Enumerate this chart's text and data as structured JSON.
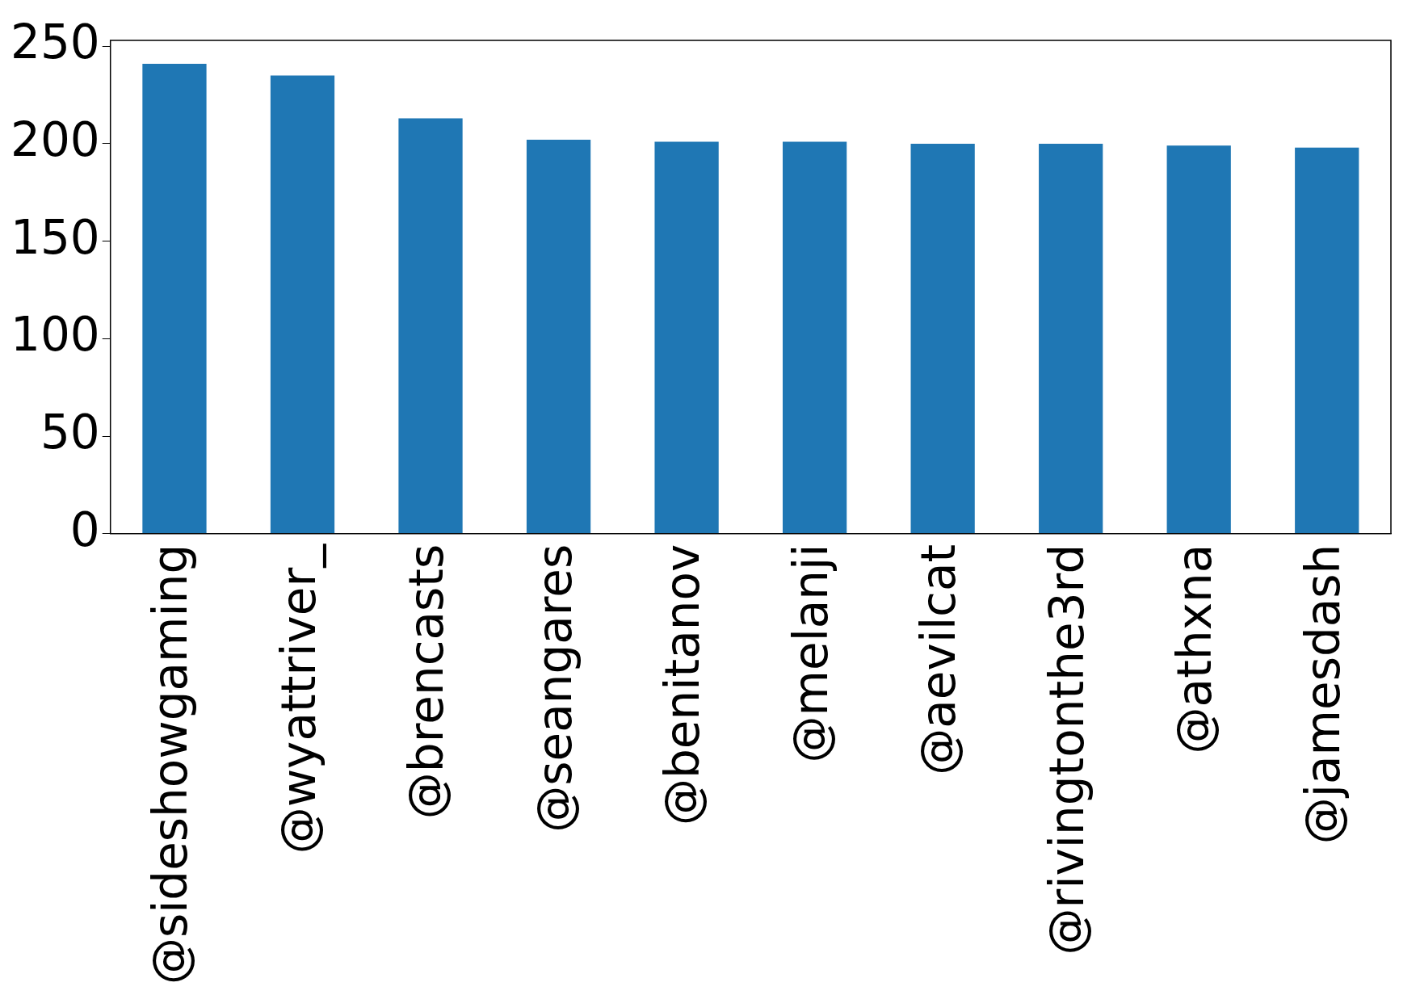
{
  "chart_data": {
    "type": "bar",
    "categories": [
      "@sideshowgaming",
      "@wyattriver_",
      "@brencasts",
      "@seangares",
      "@benitanov",
      "@melanji",
      "@aevilcat",
      "@rivingtonthe3rd",
      "@athxna",
      "@jamesdash"
    ],
    "values": [
      241,
      235,
      213,
      202,
      201,
      201,
      200,
      200,
      199,
      198
    ],
    "color": "#1f77b4",
    "ylim": [
      0,
      253
    ],
    "yticks": [
      0,
      50,
      100,
      150,
      200,
      250
    ]
  }
}
